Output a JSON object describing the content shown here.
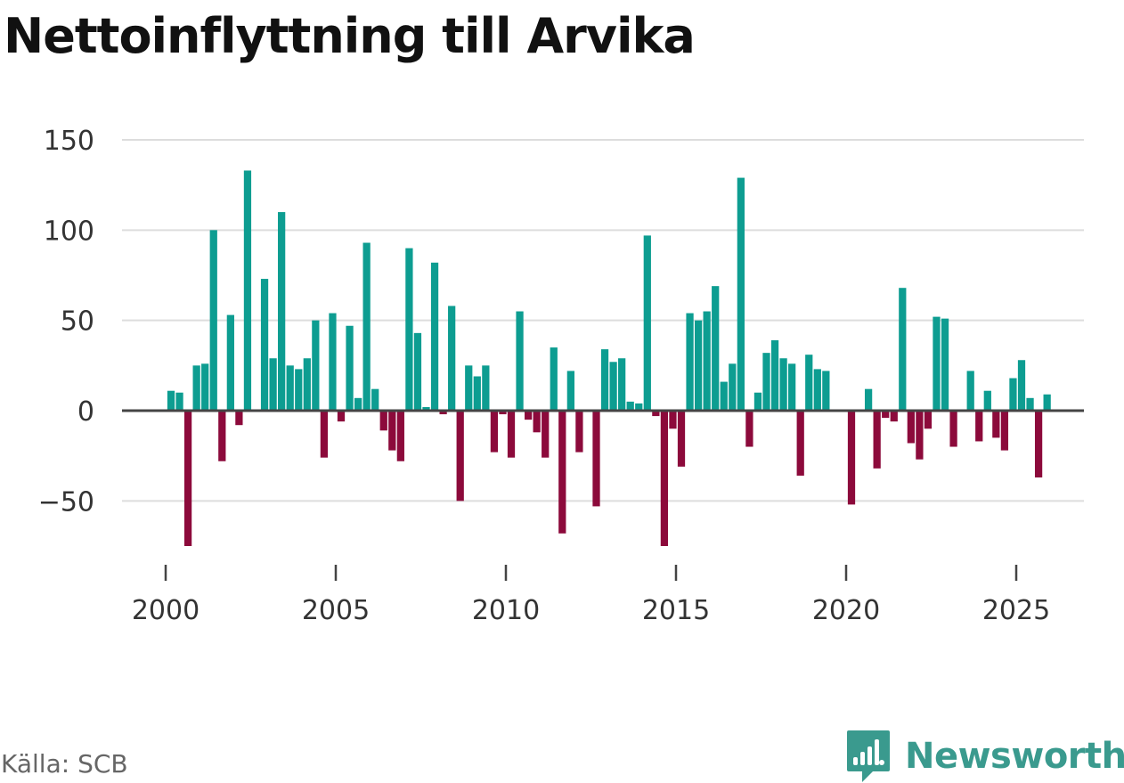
{
  "brand": {
    "name": "Newsworthy"
  },
  "source": "Källa: SCB",
  "colors": {
    "positive": "#0d9d91",
    "negative": "#8c0a3b",
    "grid": "#dddddd",
    "zero_line": "#444444",
    "tick_text": "#333333",
    "brand": "#3a9a8e"
  },
  "chart_data": {
    "type": "bar",
    "title": "Nettoinflyttning till Arvika",
    "xlabel": "",
    "ylabel": "",
    "ylim": [
      -80,
      150
    ],
    "xlim": [
      1999.3,
      2026.7
    ],
    "y_ticks": [
      150,
      100,
      50,
      0,
      -50
    ],
    "y_tick_labels": [
      "150",
      "100",
      "50",
      "0",
      "−50"
    ],
    "x_ticks": [
      2000,
      2005,
      2010,
      2015,
      2020,
      2025
    ],
    "x_tick_labels": [
      "2000",
      "2005",
      "2010",
      "2015",
      "2020",
      "2025"
    ],
    "granularity": "quarter",
    "start_year": 2000,
    "series": [
      {
        "name": "Nettoinflyttning",
        "values": [
          11,
          10,
          -75,
          25,
          26,
          100,
          -28,
          53,
          -8,
          133,
          0,
          73,
          29,
          110,
          25,
          23,
          29,
          50,
          -26,
          54,
          -6,
          47,
          7,
          93,
          12,
          -11,
          -22,
          -28,
          90,
          43,
          2,
          82,
          -2,
          58,
          -50,
          25,
          19,
          25,
          -23,
          -2,
          -26,
          55,
          -5,
          -12,
          -26,
          35,
          -68,
          22,
          -23,
          0,
          -53,
          34,
          27,
          29,
          5,
          4,
          97,
          -3,
          -75,
          -10,
          -31,
          54,
          50,
          55,
          69,
          16,
          26,
          129,
          -20,
          10,
          32,
          39,
          29,
          26,
          -36,
          31,
          23,
          22,
          0,
          0,
          -52,
          0,
          12,
          -32,
          -4,
          -6,
          68,
          -18,
          -27,
          -10,
          52,
          51,
          -20,
          0,
          22,
          -17,
          11,
          -15,
          -22,
          18,
          28,
          7,
          -37,
          9
        ]
      }
    ]
  }
}
